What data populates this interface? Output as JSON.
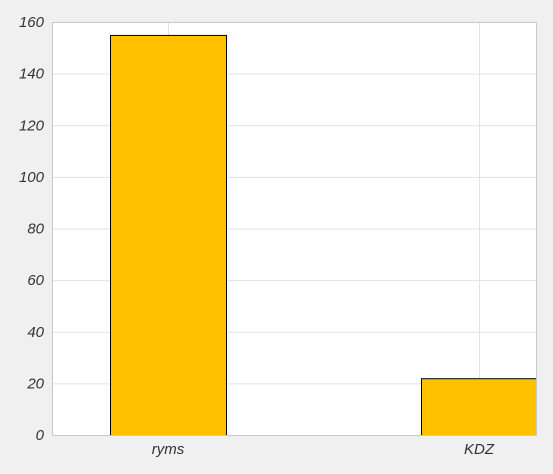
{
  "chart_data": {
    "type": "bar",
    "categories": [
      "ryms",
      "KDZ"
    ],
    "values": [
      155,
      22
    ],
    "ylim": [
      0,
      160
    ],
    "yticks": [
      0,
      20,
      40,
      60,
      80,
      100,
      120,
      140,
      160
    ],
    "title": "",
    "xlabel": "",
    "ylabel": "",
    "grid": true,
    "colors": {
      "bar": "#ffc000",
      "bar_edge": "#000000",
      "plot_background": "#ffffff",
      "page_background": "#f0f0f0"
    }
  }
}
